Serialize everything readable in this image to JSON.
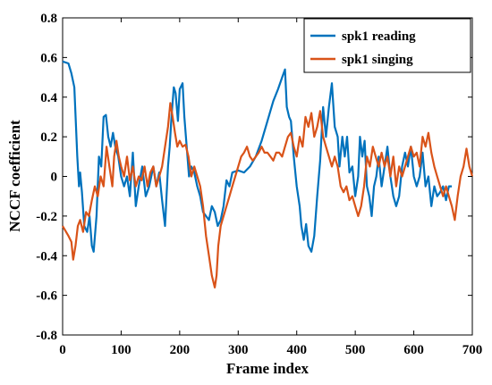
{
  "chart_data": {
    "type": "line",
    "xlabel": "Frame index",
    "ylabel": "NCCF coefficient",
    "xlim": [
      0,
      700
    ],
    "ylim": [
      -0.8,
      0.8
    ],
    "x_ticks": [
      0,
      100,
      200,
      300,
      400,
      500,
      600,
      700
    ],
    "y_ticks": [
      -0.8,
      -0.6,
      -0.4,
      -0.2,
      0,
      0.2,
      0.4,
      0.6,
      0.8
    ],
    "x_tick_labels": [
      "0",
      "100",
      "200",
      "300",
      "400",
      "500",
      "600",
      "700"
    ],
    "y_tick_labels": [
      "-0.8",
      "-0.6",
      "-0.4",
      "-0.2",
      "0",
      "0.2",
      "0.4",
      "0.6",
      "0.8"
    ],
    "grid": false,
    "legend_position": "top-right",
    "series": [
      {
        "name": "spk1 reading",
        "color": "#0072BD",
        "points": [
          [
            0,
            0.58
          ],
          [
            10,
            0.57
          ],
          [
            15,
            0.52
          ],
          [
            20,
            0.45
          ],
          [
            25,
            0.1
          ],
          [
            28,
            -0.05
          ],
          [
            30,
            0.02
          ],
          [
            33,
            -0.08
          ],
          [
            37,
            -0.25
          ],
          [
            42,
            -0.28
          ],
          [
            46,
            -0.2
          ],
          [
            50,
            -0.35
          ],
          [
            53,
            -0.38
          ],
          [
            58,
            -0.2
          ],
          [
            62,
            0.1
          ],
          [
            66,
            0.05
          ],
          [
            70,
            0.3
          ],
          [
            74,
            0.31
          ],
          [
            78,
            0.2
          ],
          [
            82,
            0.15
          ],
          [
            86,
            0.22
          ],
          [
            90,
            0.15
          ],
          [
            95,
            0.1
          ],
          [
            100,
            0.0
          ],
          [
            105,
            -0.05
          ],
          [
            110,
            0.0
          ],
          [
            115,
            -0.1
          ],
          [
            120,
            0.12
          ],
          [
            125,
            -0.15
          ],
          [
            130,
            -0.05
          ],
          [
            136,
            0.05
          ],
          [
            142,
            -0.1
          ],
          [
            148,
            -0.05
          ],
          [
            155,
            0.05
          ],
          [
            160,
            -0.05
          ],
          [
            165,
            0.02
          ],
          [
            170,
            -0.12
          ],
          [
            175,
            -0.25
          ],
          [
            180,
            0.05
          ],
          [
            183,
            0.15
          ],
          [
            186,
            0.3
          ],
          [
            190,
            0.45
          ],
          [
            193,
            0.42
          ],
          [
            197,
            0.28
          ],
          [
            200,
            0.44
          ],
          [
            205,
            0.47
          ],
          [
            208,
            0.3
          ],
          [
            212,
            0.15
          ],
          [
            216,
            0.0
          ],
          [
            220,
            0.05
          ],
          [
            225,
            0.02
          ],
          [
            230,
            -0.05
          ],
          [
            235,
            -0.1
          ],
          [
            240,
            -0.18
          ],
          [
            245,
            -0.2
          ],
          [
            250,
            -0.22
          ],
          [
            255,
            -0.15
          ],
          [
            260,
            -0.18
          ],
          [
            265,
            -0.25
          ],
          [
            270,
            -0.22
          ],
          [
            275,
            -0.15
          ],
          [
            280,
            -0.02
          ],
          [
            285,
            -0.05
          ],
          [
            290,
            0.02
          ],
          [
            300,
            0.03
          ],
          [
            310,
            0.02
          ],
          [
            320,
            0.05
          ],
          [
            330,
            0.1
          ],
          [
            340,
            0.18
          ],
          [
            350,
            0.28
          ],
          [
            360,
            0.38
          ],
          [
            368,
            0.44
          ],
          [
            375,
            0.5
          ],
          [
            380,
            0.54
          ],
          [
            383,
            0.35
          ],
          [
            387,
            0.3
          ],
          [
            390,
            0.28
          ],
          [
            395,
            0.1
          ],
          [
            400,
            -0.05
          ],
          [
            405,
            -0.15
          ],
          [
            408,
            -0.25
          ],
          [
            412,
            -0.32
          ],
          [
            416,
            -0.24
          ],
          [
            420,
            -0.35
          ],
          [
            425,
            -0.38
          ],
          [
            430,
            -0.3
          ],
          [
            435,
            -0.1
          ],
          [
            440,
            0.08
          ],
          [
            445,
            0.35
          ],
          [
            450,
            0.2
          ],
          [
            455,
            0.35
          ],
          [
            460,
            0.47
          ],
          [
            465,
            0.25
          ],
          [
            470,
            0.2
          ],
          [
            473,
            0.05
          ],
          [
            478,
            0.2
          ],
          [
            482,
            0.1
          ],
          [
            486,
            0.2
          ],
          [
            490,
            0.02
          ],
          [
            495,
            0.05
          ],
          [
            500,
            -0.1
          ],
          [
            505,
            0.0
          ],
          [
            508,
            0.2
          ],
          [
            512,
            0.1
          ],
          [
            516,
            0.18
          ],
          [
            520,
            -0.05
          ],
          [
            524,
            -0.1
          ],
          [
            528,
            -0.2
          ],
          [
            532,
            -0.05
          ],
          [
            536,
            0.0
          ],
          [
            540,
            0.1
          ],
          [
            545,
            -0.05
          ],
          [
            550,
            0.05
          ],
          [
            555,
            0.15
          ],
          [
            560,
            0.0
          ],
          [
            565,
            -0.1
          ],
          [
            570,
            -0.15
          ],
          [
            575,
            -0.1
          ],
          [
            580,
            0.05
          ],
          [
            585,
            0.12
          ],
          [
            590,
            0.05
          ],
          [
            595,
            0.15
          ],
          [
            600,
            0.0
          ],
          [
            605,
            -0.05
          ],
          [
            610,
            0.0
          ],
          [
            615,
            0.12
          ],
          [
            620,
            -0.05
          ],
          [
            625,
            0.0
          ],
          [
            630,
            -0.15
          ],
          [
            635,
            -0.05
          ],
          [
            640,
            -0.1
          ],
          [
            645,
            -0.08
          ],
          [
            650,
            -0.05
          ],
          [
            655,
            -0.12
          ],
          [
            660,
            -0.05
          ],
          [
            665,
            -0.05
          ]
        ]
      },
      {
        "name": "spk1 singing",
        "color": "#D95319",
        "points": [
          [
            0,
            -0.25
          ],
          [
            10,
            -0.3
          ],
          [
            15,
            -0.33
          ],
          [
            18,
            -0.42
          ],
          [
            22,
            -0.35
          ],
          [
            26,
            -0.25
          ],
          [
            30,
            -0.22
          ],
          [
            35,
            -0.28
          ],
          [
            40,
            -0.18
          ],
          [
            45,
            -0.2
          ],
          [
            50,
            -0.12
          ],
          [
            55,
            -0.05
          ],
          [
            60,
            -0.1
          ],
          [
            65,
            0.0
          ],
          [
            70,
            -0.05
          ],
          [
            75,
            0.15
          ],
          [
            80,
            0.05
          ],
          [
            85,
            -0.05
          ],
          [
            88,
            0.1
          ],
          [
            92,
            0.18
          ],
          [
            96,
            0.1
          ],
          [
            100,
            0.05
          ],
          [
            105,
            0.0
          ],
          [
            110,
            0.1
          ],
          [
            115,
            -0.02
          ],
          [
            120,
            0.05
          ],
          [
            125,
            -0.05
          ],
          [
            130,
            0.0
          ],
          [
            135,
            -0.02
          ],
          [
            140,
            0.05
          ],
          [
            145,
            -0.05
          ],
          [
            150,
            0.02
          ],
          [
            155,
            0.05
          ],
          [
            160,
            -0.05
          ],
          [
            165,
            0.0
          ],
          [
            170,
            0.05
          ],
          [
            175,
            0.15
          ],
          [
            180,
            0.25
          ],
          [
            184,
            0.37
          ],
          [
            188,
            0.3
          ],
          [
            192,
            0.22
          ],
          [
            196,
            0.15
          ],
          [
            200,
            0.18
          ],
          [
            205,
            0.15
          ],
          [
            210,
            0.16
          ],
          [
            215,
            0.1
          ],
          [
            220,
            0.0
          ],
          [
            225,
            0.05
          ],
          [
            230,
            0.0
          ],
          [
            235,
            -0.05
          ],
          [
            240,
            -0.15
          ],
          [
            245,
            -0.3
          ],
          [
            250,
            -0.4
          ],
          [
            255,
            -0.5
          ],
          [
            260,
            -0.56
          ],
          [
            263,
            -0.5
          ],
          [
            266,
            -0.35
          ],
          [
            270,
            -0.25
          ],
          [
            275,
            -0.2
          ],
          [
            280,
            -0.15
          ],
          [
            285,
            -0.1
          ],
          [
            290,
            -0.05
          ],
          [
            295,
            0.0
          ],
          [
            300,
            0.05
          ],
          [
            305,
            0.1
          ],
          [
            310,
            0.12
          ],
          [
            315,
            0.15
          ],
          [
            320,
            0.1
          ],
          [
            325,
            0.08
          ],
          [
            330,
            0.1
          ],
          [
            335,
            0.12
          ],
          [
            340,
            0.15
          ],
          [
            345,
            0.12
          ],
          [
            350,
            0.12
          ],
          [
            355,
            0.1
          ],
          [
            360,
            0.08
          ],
          [
            365,
            0.12
          ],
          [
            370,
            0.12
          ],
          [
            375,
            0.1
          ],
          [
            380,
            0.15
          ],
          [
            385,
            0.2
          ],
          [
            390,
            0.22
          ],
          [
            395,
            0.15
          ],
          [
            400,
            0.1
          ],
          [
            405,
            0.2
          ],
          [
            410,
            0.15
          ],
          [
            415,
            0.3
          ],
          [
            420,
            0.25
          ],
          [
            425,
            0.32
          ],
          [
            430,
            0.2
          ],
          [
            435,
            0.25
          ],
          [
            440,
            0.33
          ],
          [
            445,
            0.2
          ],
          [
            450,
            0.15
          ],
          [
            455,
            0.1
          ],
          [
            460,
            0.05
          ],
          [
            465,
            0.1
          ],
          [
            470,
            0.05
          ],
          [
            475,
            -0.05
          ],
          [
            480,
            -0.08
          ],
          [
            485,
            -0.05
          ],
          [
            490,
            -0.12
          ],
          [
            495,
            -0.1
          ],
          [
            500,
            -0.15
          ],
          [
            505,
            -0.2
          ],
          [
            510,
            -0.15
          ],
          [
            515,
            -0.05
          ],
          [
            520,
            0.1
          ],
          [
            525,
            0.05
          ],
          [
            530,
            0.15
          ],
          [
            535,
            0.1
          ],
          [
            540,
            0.05
          ],
          [
            545,
            0.12
          ],
          [
            550,
            0.05
          ],
          [
            555,
            0.1
          ],
          [
            560,
            0.0
          ],
          [
            565,
            0.1
          ],
          [
            570,
            -0.05
          ],
          [
            575,
            0.05
          ],
          [
            580,
            0.0
          ],
          [
            585,
            0.05
          ],
          [
            590,
            0.1
          ],
          [
            595,
            0.15
          ],
          [
            600,
            0.1
          ],
          [
            605,
            0.12
          ],
          [
            610,
            0.05
          ],
          [
            615,
            0.2
          ],
          [
            620,
            0.15
          ],
          [
            625,
            0.22
          ],
          [
            630,
            0.12
          ],
          [
            635,
            0.05
          ],
          [
            640,
            0.0
          ],
          [
            645,
            -0.05
          ],
          [
            650,
            -0.1
          ],
          [
            655,
            -0.05
          ],
          [
            660,
            -0.1
          ],
          [
            665,
            -0.15
          ],
          [
            670,
            -0.22
          ],
          [
            675,
            -0.1
          ],
          [
            680,
            0.0
          ],
          [
            685,
            0.05
          ],
          [
            690,
            0.14
          ],
          [
            695,
            0.05
          ],
          [
            700,
            0.0
          ]
        ]
      }
    ]
  }
}
